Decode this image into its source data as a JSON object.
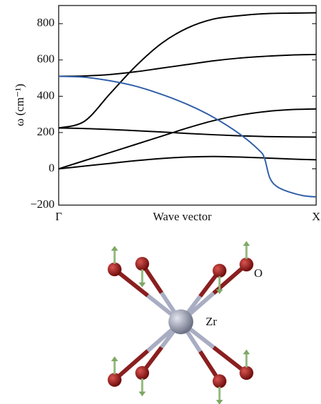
{
  "chart_data": {
    "type": "line",
    "ylabel": "ω (cm⁻¹)",
    "xlabel": "Wave vector",
    "xlim": [
      0,
      1
    ],
    "xticks": [
      {
        "value": 0,
        "label": "Γ"
      },
      {
        "value": 1,
        "label": "X"
      }
    ],
    "ylim": [
      -200,
      900
    ],
    "yticks": [
      {
        "value": -200,
        "label": "−200"
      },
      0,
      200,
      400,
      600,
      800
    ],
    "series": [
      {
        "color": "#000000",
        "x": [
          0,
          0.1,
          0.2,
          0.3,
          0.4,
          0.5,
          0.6,
          0.7,
          0.8,
          0.9,
          1
        ],
        "values": [
          225,
          262,
          415,
          567,
          692,
          776,
          825,
          844,
          855,
          858,
          860
        ]
      },
      {
        "color": "#000000",
        "x": [
          0,
          0.1,
          0.2,
          0.3,
          0.4,
          0.5,
          0.6,
          0.7,
          0.8,
          0.9,
          1
        ],
        "values": [
          510,
          512,
          520,
          535,
          555,
          575,
          595,
          610,
          620,
          627,
          630
        ]
      },
      {
        "color": "#000000",
        "x": [
          0,
          0.1,
          0.2,
          0.3,
          0.4,
          0.5,
          0.6,
          0.7,
          0.8,
          0.9,
          1
        ],
        "values": [
          0,
          45,
          90,
          135,
          180,
          225,
          265,
          295,
          315,
          326,
          330
        ]
      },
      {
        "color": "#000000",
        "x": [
          0,
          0.1,
          0.2,
          0.3,
          0.4,
          0.5,
          0.6,
          0.7,
          0.8,
          0.9,
          1
        ],
        "values": [
          225,
          222,
          217,
          210,
          203,
          195,
          188,
          182,
          178,
          176,
          175
        ]
      },
      {
        "color": "#000000",
        "x": [
          0,
          0.1,
          0.2,
          0.3,
          0.4,
          0.5,
          0.6,
          0.7,
          0.8,
          0.9,
          1
        ],
        "values": [
          0,
          15,
          30,
          45,
          57,
          65,
          68,
          65,
          60,
          54,
          50
        ]
      },
      {
        "color": "#2f5ea8",
        "x": [
          0,
          0.1,
          0.2,
          0.3,
          0.4,
          0.5,
          0.6,
          0.7,
          0.78,
          0.8,
          0.82,
          0.85,
          0.9,
          0.95,
          1
        ],
        "values": [
          510,
          505,
          485,
          455,
          410,
          355,
          285,
          195,
          100,
          55,
          -50,
          -100,
          -130,
          -148,
          -155
        ]
      }
    ]
  },
  "diagram": {
    "labels": [
      "Zr",
      "O"
    ]
  }
}
